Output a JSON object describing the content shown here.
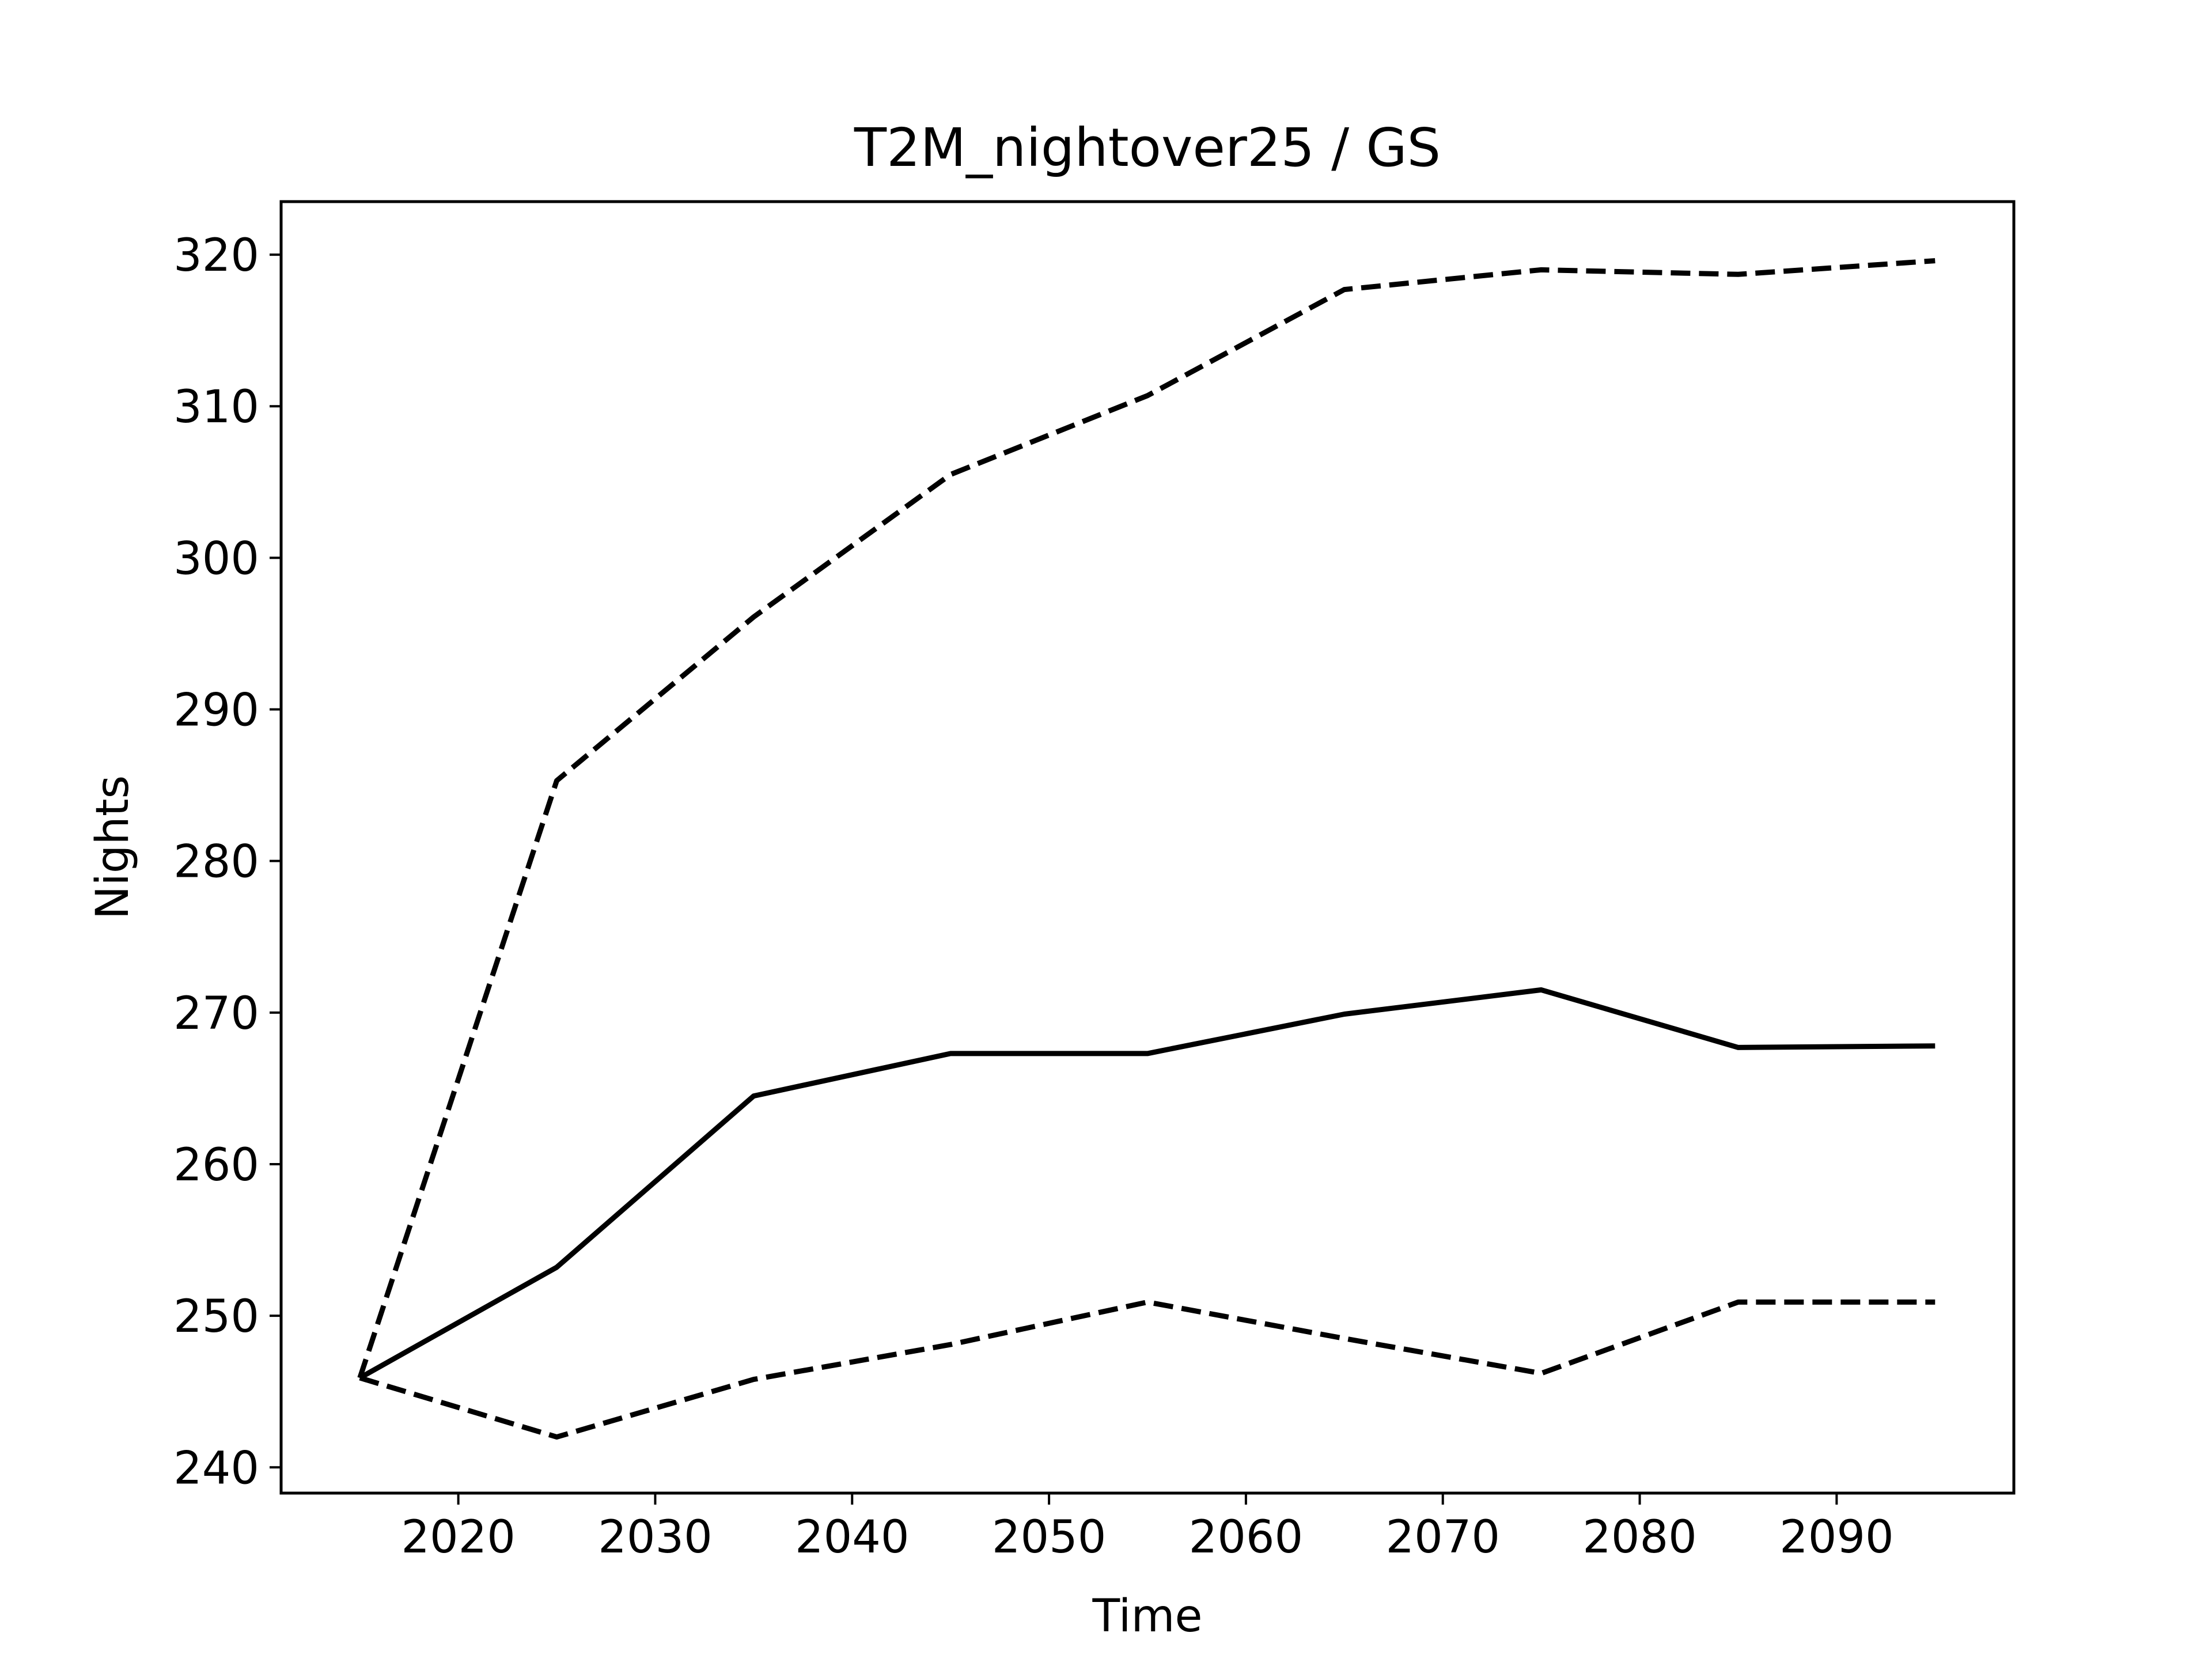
{
  "chart_data": {
    "type": "line",
    "title": "T2M_nightover25 / GS",
    "xlabel": "Time",
    "ylabel": "Nights",
    "xlim": [
      2011,
      2099
    ],
    "ylim": [
      238.3,
      323.5
    ],
    "xticks": [
      2020,
      2030,
      2040,
      2050,
      2060,
      2070,
      2080,
      2090
    ],
    "yticks": [
      240,
      250,
      260,
      270,
      280,
      290,
      300,
      310,
      320
    ],
    "grid": false,
    "legend": "none",
    "x": [
      2015,
      2025,
      2035,
      2045,
      2055,
      2065,
      2075,
      2085,
      2095
    ],
    "series": [
      {
        "style": "solid",
        "color": "#000000",
        "values": [
          245.9,
          253.2,
          264.5,
          267.3,
          267.3,
          269.9,
          271.5,
          267.7,
          267.8
        ]
      },
      {
        "style": "dashed",
        "color": "#000000",
        "values": [
          245.9,
          285.3,
          296.1,
          305.5,
          310.7,
          317.7,
          319.0,
          318.7,
          319.6
        ]
      },
      {
        "style": "dashed",
        "color": "#000000",
        "values": [
          245.9,
          242.0,
          245.8,
          248.1,
          250.9,
          248.5,
          246.2,
          250.9,
          250.9
        ]
      }
    ]
  }
}
